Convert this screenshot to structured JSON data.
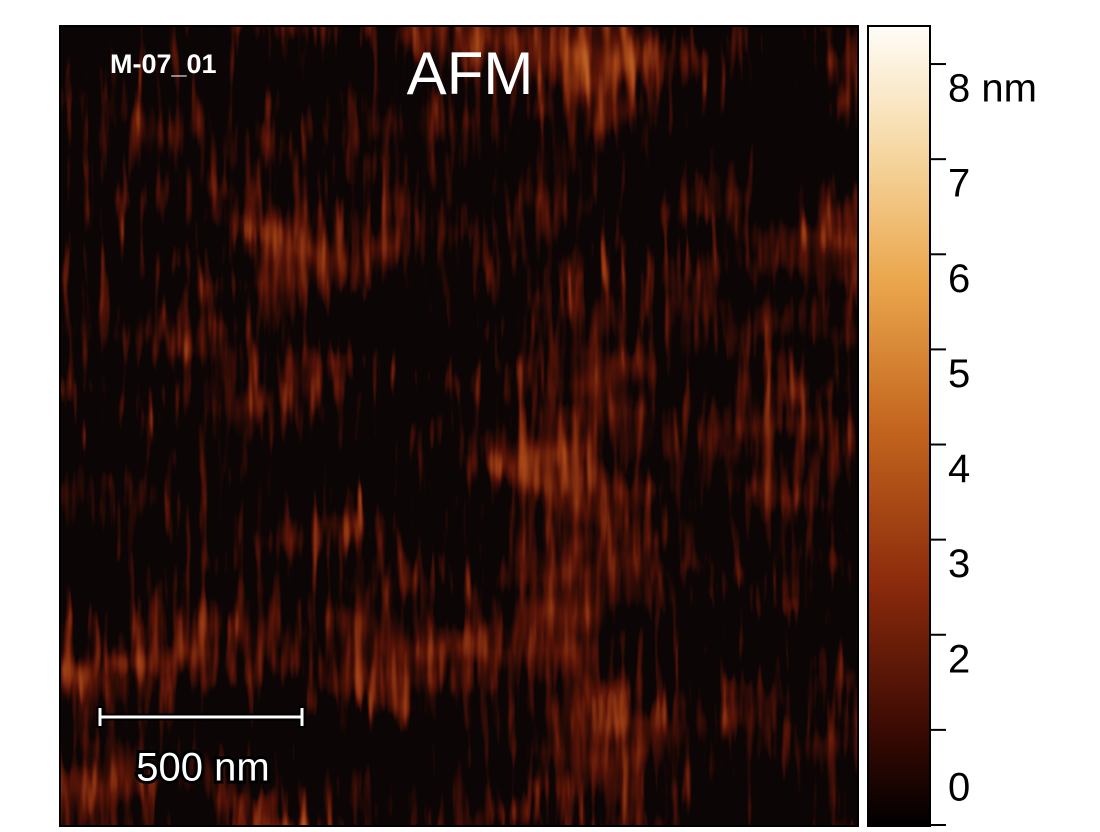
{
  "image": {
    "sample_id": "M-07_01",
    "title": "AFM",
    "scale_bar": "500 nm"
  },
  "colorbar": {
    "lim": [
      0,
      8.4
    ],
    "ticks": [
      {
        "value": 0,
        "label": "0"
      },
      {
        "value": 1,
        "label": null
      },
      {
        "value": 2,
        "label": "2"
      },
      {
        "value": 3,
        "label": "3"
      },
      {
        "value": 4,
        "label": "4"
      },
      {
        "value": 5,
        "label": "5"
      },
      {
        "value": 6,
        "label": "6"
      },
      {
        "value": 7,
        "label": "7"
      },
      {
        "value": 8,
        "label": "8 nm"
      }
    ]
  }
}
